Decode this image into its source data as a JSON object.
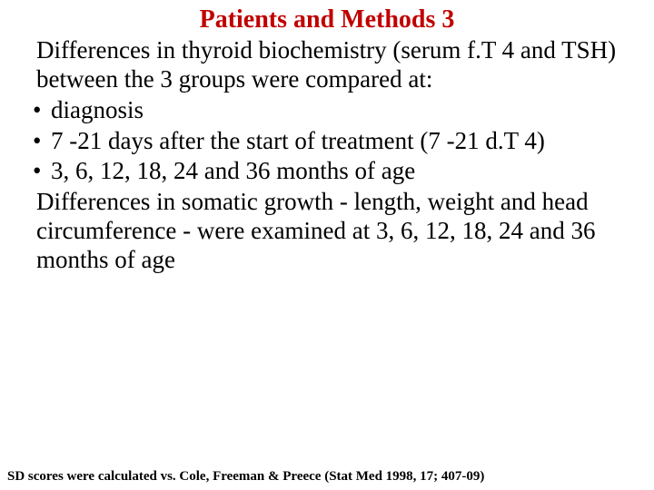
{
  "colors": {
    "title_color": "#c00000",
    "body_color": "#000000",
    "background": "#ffffff"
  },
  "typography": {
    "title_fontsize": 28,
    "body_fontsize": 27,
    "footnote_fontsize": 15,
    "font_family": "Comic Sans MS"
  },
  "title": "Patients and Methods 3",
  "intro": "Differences in thyroid biochemistry (serum f.T 4 and TSH) between the 3 groups were compared at:",
  "bullets": [
    "diagnosis",
    "7 -21 days after the start of treatment (7 -21 d.T 4)",
    "3, 6, 12, 18, 24 and 36 months of age"
  ],
  "para": "Differences in somatic growth - length, weight and head circumference -  were examined at 3, 6, 12, 18, 24 and 36 months of age",
  "footnote": "SD scores were calculated vs. Cole, Freeman & Preece (Stat Med 1998, 17; 407-09)"
}
